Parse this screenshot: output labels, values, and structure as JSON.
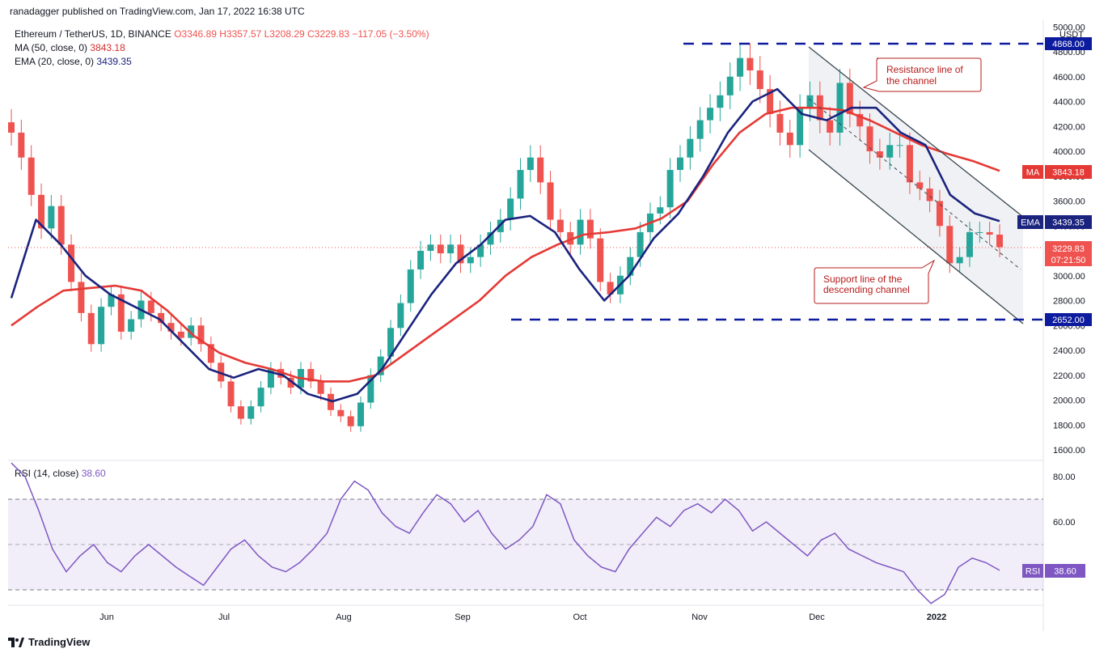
{
  "header": {
    "publisher_line": "ranadagger published on TradingView.com, Jan 17, 2022 16:38 UTC"
  },
  "legend": {
    "symbol": "Ethereum / TetherUS, 1D, BINANCE",
    "ohlc": "O3346.89 H3357.57 L3208.29 C3229.83 −117.05 (−3.50%)",
    "ma_label": "MA (50, close, 0)",
    "ma_value": "3843.18",
    "ema_label": "EMA (20, close, 0)",
    "ema_value": "3439.35",
    "rsi_label": "RSI (14, close)",
    "rsi_value": "38.60"
  },
  "footer": {
    "brand": "TradingView"
  },
  "colors": {
    "up": "#26a69a",
    "down": "#ef5350",
    "ma": "#e53935",
    "ema": "#1a237e",
    "rsi": "#7e57c2",
    "level": "#0d1b9e",
    "annotation": "#b71c1c"
  },
  "chart_data": [
    {
      "type": "candlestick",
      "title": "Ethereum / TetherUS, 1D, BINANCE",
      "unit": "USDT",
      "ylim": [
        1500,
        5050
      ],
      "y_ticks": [
        1600,
        1800,
        2000,
        2200,
        2400,
        2600,
        2800,
        3000,
        3200,
        3400,
        3600,
        3800,
        4000,
        4200,
        4400,
        4600,
        4800,
        5000
      ],
      "y_tick_labels": [
        "1600.00",
        "1800.00",
        "2000.00",
        "2200.00",
        "2400.00",
        "2600.00",
        "2800.00",
        "3000.00",
        "3200.00",
        "3400.00",
        "3600.00",
        "3800.00",
        "4000.00",
        "4200.00",
        "4400.00",
        "4600.00",
        "4800.00",
        "5000.00"
      ],
      "x_labels": [
        "Jun",
        "Jul",
        "Aug",
        "Sep",
        "Oct",
        "Nov",
        "Dec",
        "2022"
      ],
      "price_closes": [
        4150,
        3950,
        3650,
        3380,
        3560,
        3250,
        2950,
        2700,
        2450,
        2750,
        2850,
        2550,
        2650,
        2800,
        2700,
        2620,
        2550,
        2500,
        2600,
        2450,
        2300,
        2150,
        1950,
        1850,
        1950,
        2100,
        2250,
        2180,
        2100,
        2250,
        2150,
        2050,
        1920,
        1870,
        1790,
        1980,
        2200,
        2350,
        2580,
        2780,
        3050,
        3200,
        3250,
        3180,
        3250,
        3100,
        3150,
        3250,
        3350,
        3450,
        3620,
        3850,
        3950,
        3750,
        3450,
        3350,
        3250,
        3450,
        3300,
        2950,
        2850,
        3000,
        3150,
        3350,
        3500,
        3550,
        3850,
        3950,
        4100,
        4250,
        4350,
        4450,
        4600,
        4750,
        4650,
        4500,
        4300,
        4150,
        4050,
        4350,
        4450,
        4250,
        4150,
        4550,
        4300,
        4200,
        4000,
        3950,
        4050,
        4050,
        3750,
        3700,
        3600,
        3400,
        3100,
        3150,
        3350,
        3350,
        3330,
        3229.83
      ],
      "ma50": [
        2600,
        2750,
        2880,
        2900,
        2920,
        2880,
        2720,
        2520,
        2380,
        2300,
        2250,
        2180,
        2150,
        2150,
        2200,
        2350,
        2500,
        2650,
        2800,
        3000,
        3150,
        3250,
        3330,
        3350,
        3380,
        3460,
        3600,
        3900,
        4150,
        4300,
        4350,
        4350,
        4330,
        4250,
        4150,
        4050,
        3980,
        3920,
        3843.18
      ],
      "ema20": [
        2820,
        3450,
        3250,
        3000,
        2850,
        2750,
        2650,
        2450,
        2250,
        2180,
        2250,
        2200,
        2050,
        1990,
        2050,
        2250,
        2550,
        2850,
        3100,
        3250,
        3450,
        3480,
        3350,
        3050,
        2800,
        3000,
        3300,
        3500,
        3800,
        4150,
        4400,
        4500,
        4300,
        4250,
        4350,
        4350,
        4150,
        4050,
        3650,
        3500,
        3439.35
      ],
      "levels": [
        {
          "value": 4868.0,
          "label": "4868.00"
        },
        {
          "value": 2652.0,
          "label": "2652.00"
        }
      ],
      "price_tags": [
        {
          "name": "MA",
          "value": "3843.18"
        },
        {
          "name": "EMA",
          "value": "3439.35"
        },
        {
          "name": "last",
          "value": "3229.83",
          "countdown": "07:21:50"
        }
      ],
      "annotations": [
        "Resistance line of the channel",
        "Support line of the descending channel"
      ]
    },
    {
      "type": "line",
      "title": "RSI (14, close)",
      "ylim": [
        20,
        90
      ],
      "y_ticks": [
        60,
        80
      ],
      "y_tick_labels": [
        "60.00",
        "80.00"
      ],
      "band": [
        30,
        70
      ],
      "midline": 50,
      "rsi_values": [
        86,
        80,
        65,
        48,
        38,
        45,
        50,
        42,
        38,
        45,
        50,
        45,
        40,
        36,
        32,
        40,
        48,
        52,
        45,
        40,
        38,
        42,
        48,
        55,
        70,
        78,
        74,
        64,
        58,
        55,
        64,
        72,
        68,
        60,
        65,
        55,
        48,
        52,
        58,
        72,
        68,
        52,
        45,
        40,
        38,
        48,
        55,
        62,
        58,
        65,
        68,
        64,
        70,
        65,
        56,
        60,
        55,
        50,
        45,
        52,
        55,
        48,
        45,
        42,
        40,
        38,
        30,
        24,
        28,
        40,
        44,
        42,
        38.6
      ],
      "last_value": "38.60"
    }
  ]
}
